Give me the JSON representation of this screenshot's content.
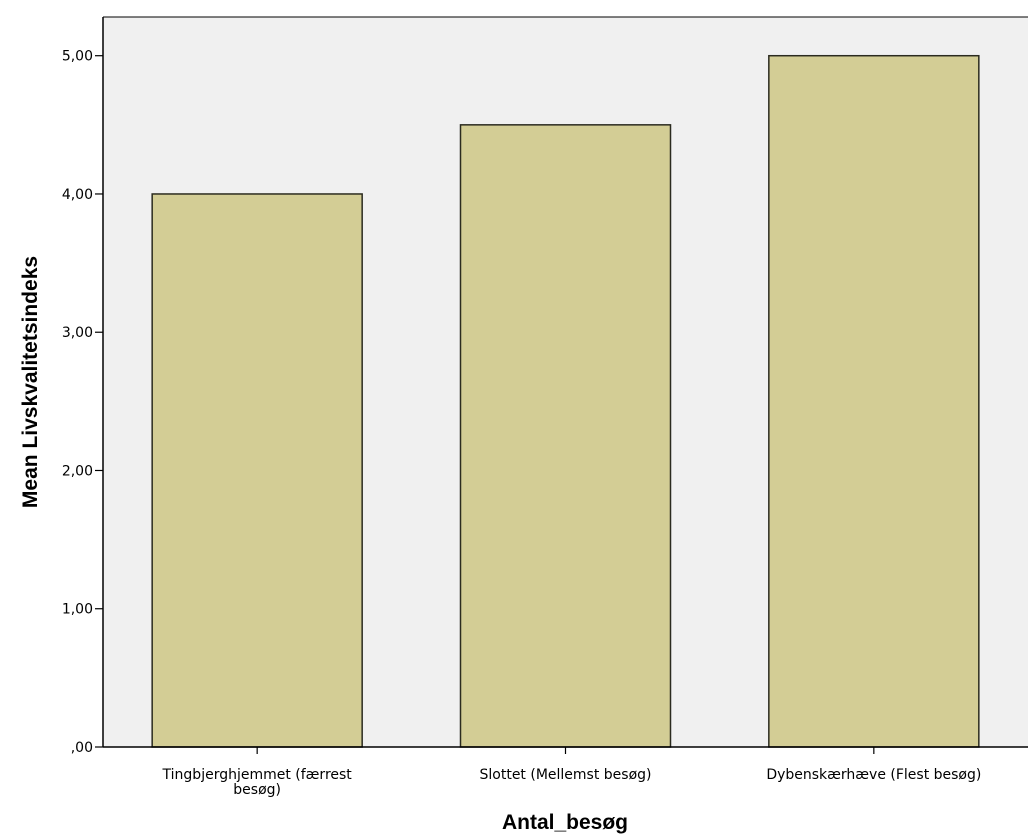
{
  "chart_data": {
    "type": "bar",
    "categories": [
      [
        "Tingbjerghjemmet (færrest",
        "besøg)"
      ],
      [
        "Slottet (Mellemst besøg)"
      ],
      [
        "Dybenskærhæve (Flest besøg)"
      ]
    ],
    "values": [
      4.0,
      4.5,
      5.0
    ],
    "xlabel": "Antal_besøg",
    "ylabel": "Mean Livskvalitetsindeks",
    "ylim": [
      0,
      5.28
    ],
    "yticks": [
      0,
      1,
      2,
      3,
      4,
      5
    ],
    "ytick_labels": [
      ",00",
      "1,00",
      "2,00",
      "3,00",
      "4,00",
      "5,00"
    ],
    "grid": false,
    "colors": {
      "bar_fill": "#d3cd95",
      "bar_stroke": "#2b2b1f",
      "plot_background": "#f0f0f0",
      "axis": "#000000"
    }
  }
}
